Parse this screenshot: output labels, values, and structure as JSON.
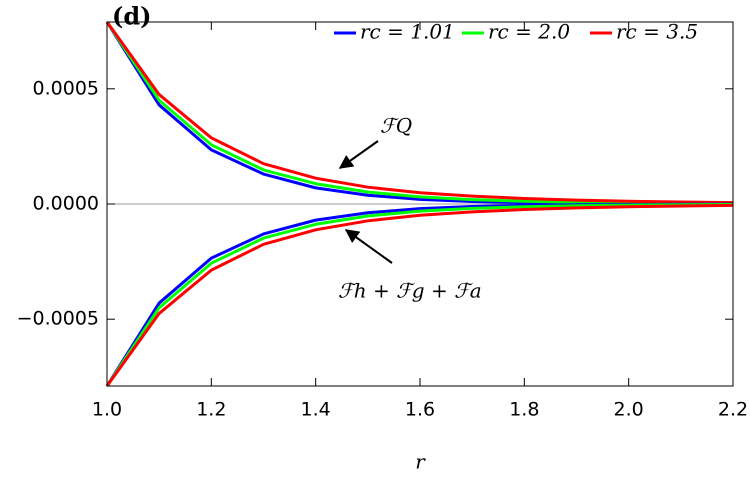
{
  "chart_data": {
    "type": "line",
    "panel_label": "(d)",
    "xlabel": "r",
    "annotations": [
      "ℱQ",
      "ℱh + ℱg + ℱa"
    ],
    "x": [
      1.0,
      1.1,
      1.2,
      1.3,
      1.4,
      1.5,
      1.6,
      1.7,
      1.8,
      1.9,
      2.0,
      2.1,
      2.2
    ],
    "series": [
      {
        "name": "rc = 1.01",
        "color": "#0000ff",
        "values": [
          0.00079,
          0.00043,
          0.000235,
          0.00013,
          7e-05,
          3.8e-05,
          2e-05,
          1.1e-05,
          6e-06,
          3.5e-06,
          2e-06,
          1.2e-06,
          7e-07
        ]
      },
      {
        "name": "rc = 2.0",
        "color": "#00ff00",
        "values": [
          0.00079,
          0.00045,
          0.000257,
          0.000148,
          8.8e-05,
          5.2e-05,
          3.1e-05,
          1.9e-05,
          1.2e-05,
          7.5e-06,
          4.8e-06,
          3e-06,
          2e-06
        ]
      },
      {
        "name": "rc = 3.5",
        "color": "#ff0000",
        "values": [
          0.00079,
          0.000475,
          0.000287,
          0.000175,
          0.000112,
          7.3e-05,
          4.9e-05,
          3.4e-05,
          2.4e-05,
          1.7e-05,
          1.2e-05,
          8.5e-06,
          6e-06
        ]
      },
      {
        "color": "#0000ff",
        "values": [
          -0.00079,
          -0.00043,
          -0.000235,
          -0.00013,
          -7e-05,
          -3.8e-05,
          -2e-05,
          -1.1e-05,
          -6e-06,
          -3.5e-06,
          -2e-06,
          -1.2e-06,
          -7e-07
        ]
      },
      {
        "color": "#00ff00",
        "values": [
          -0.00079,
          -0.00045,
          -0.000257,
          -0.000148,
          -8.8e-05,
          -5.2e-05,
          -3.1e-05,
          -1.9e-05,
          -1.2e-05,
          -7.5e-06,
          -4.8e-06,
          -3e-06,
          -2e-06
        ]
      },
      {
        "color": "#ff0000",
        "values": [
          -0.00079,
          -0.000475,
          -0.000287,
          -0.000175,
          -0.000112,
          -7.3e-05,
          -4.9e-05,
          -3.4e-05,
          -2.4e-05,
          -1.7e-05,
          -1.2e-05,
          -8.5e-06,
          -6e-06
        ]
      }
    ],
    "xlim": [
      1.0,
      2.2
    ],
    "xticks": [
      {
        "value": 1.0,
        "label": "1.0"
      },
      1.2,
      1.4,
      1.6,
      1.8,
      {
        "value": 2.0,
        "label": "2.0"
      },
      2.2
    ],
    "ylim": [
      -0.00079,
      0.00079
    ],
    "yticks": [
      {
        "value": -0.0005,
        "label": "−0.0005"
      },
      {
        "value": 0,
        "label": "0.0000"
      },
      0.0005
    ],
    "zero_line": true,
    "legend": "top-right"
  }
}
